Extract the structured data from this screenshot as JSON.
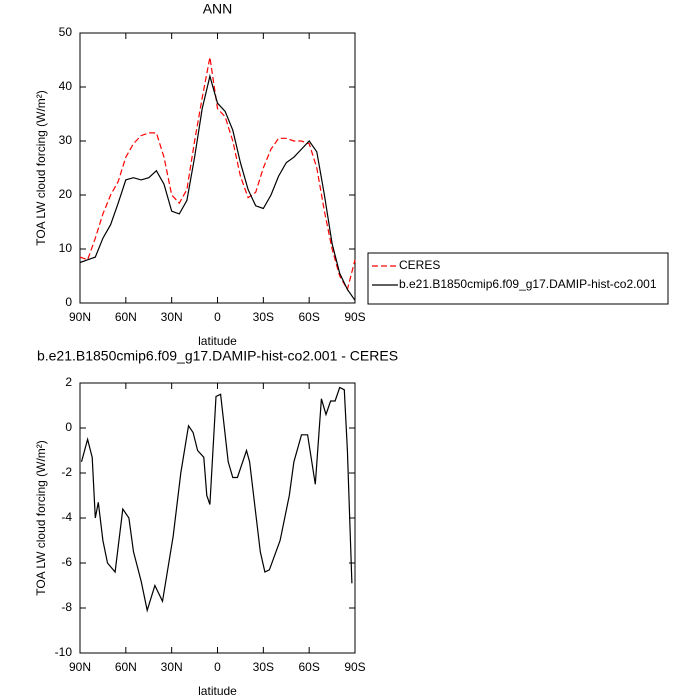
{
  "chart_data": [
    {
      "type": "line",
      "title": "ANN",
      "x_label": "latitude",
      "y_label": "TOA LW cloud forcing (W/m²)",
      "x": [
        90,
        85,
        80,
        75,
        70,
        65,
        60,
        55,
        50,
        45,
        40,
        35,
        30,
        25,
        20,
        15,
        10,
        5,
        0,
        -5,
        -10,
        -15,
        -20,
        -25,
        -30,
        -35,
        -40,
        -45,
        -50,
        -55,
        -60,
        -65,
        -70,
        -75,
        -80,
        -85,
        -90
      ],
      "series": [
        {
          "name": "CERES",
          "color": "#ff0000",
          "style": "dashed",
          "values": [
            8.5,
            8,
            12,
            16.5,
            20,
            22.5,
            27,
            29.5,
            31,
            31.5,
            31.5,
            27,
            20,
            18.5,
            21,
            30,
            38,
            45.5,
            36,
            34.5,
            30,
            23.5,
            19.5,
            20.5,
            25,
            28.5,
            30.5,
            30.5,
            30,
            30,
            29.5,
            25,
            17,
            10,
            5,
            2.5,
            8
          ]
        },
        {
          "name": "b.e21.B1850cmip6.f09_g17.DAMIP-hist-co2.001",
          "color": "#000000",
          "style": "solid",
          "values": [
            7.5,
            8,
            8.5,
            12,
            14.5,
            18.5,
            22.8,
            23.2,
            22.8,
            23.2,
            24.5,
            22,
            17,
            16.5,
            19,
            27,
            36,
            42,
            37,
            35.5,
            32,
            26,
            21,
            18,
            17.5,
            20,
            23.5,
            26,
            27,
            28.5,
            30,
            28,
            20,
            11,
            5.5,
            2.5,
            0.5
          ]
        }
      ],
      "xlim": [
        90,
        -90
      ],
      "ylim": [
        0,
        50
      ],
      "xticks": [
        {
          "value": 90,
          "label": "90N"
        },
        {
          "value": 60,
          "label": "60N"
        },
        {
          "value": 30,
          "label": "30N"
        },
        0,
        {
          "value": -30,
          "label": "30S"
        },
        {
          "value": -60,
          "label": "60S"
        },
        {
          "value": -90,
          "label": "90S"
        }
      ],
      "yticks": [
        0,
        10,
        20,
        30,
        40,
        50
      ],
      "legend": "right"
    },
    {
      "type": "line",
      "title": "b.e21.B1850cmip6.f09_g17.DAMIP-hist-co2.001 - CERES",
      "x_label": "latitude",
      "y_label": "TOA LW cloud forcing (W/m²)",
      "x": [
        89,
        85,
        82,
        80,
        78,
        75,
        72,
        67,
        62,
        58,
        55,
        50,
        46,
        41,
        36,
        29,
        24,
        19,
        16,
        13,
        9,
        7,
        5,
        1,
        -2,
        -7,
        -10,
        -13,
        -19,
        -21,
        -28,
        -31,
        -34,
        -41,
        -47,
        -50,
        -55,
        -59,
        -64,
        -68,
        -71,
        -74,
        -77,
        -80,
        -83,
        -85,
        -88
      ],
      "values": [
        -1.5,
        -0.5,
        -1.3,
        -4,
        -3.3,
        -5,
        -6,
        -6.4,
        -3.6,
        -4,
        -5.5,
        -6.8,
        -8.1,
        -7,
        -7.7,
        -4.8,
        -2,
        0.1,
        -0.2,
        -1,
        -1.3,
        -3,
        -3.4,
        1.4,
        1.5,
        -1.5,
        -2.2,
        -2.2,
        -1,
        -1.5,
        -5.5,
        -6.4,
        -6.3,
        -5,
        -3,
        -1.5,
        -0.3,
        -0.3,
        -2.5,
        1.3,
        0.6,
        1.2,
        1.2,
        1.8,
        1.7,
        -1,
        -6.9
      ],
      "color": "#000000",
      "xlim": [
        90,
        -90
      ],
      "ylim": [
        -10,
        2
      ],
      "xticks": [
        {
          "value": 90,
          "label": "90N"
        },
        {
          "value": 60,
          "label": "60N"
        },
        {
          "value": 30,
          "label": "30N"
        },
        0,
        {
          "value": -30,
          "label": "30S"
        },
        {
          "value": -60,
          "label": "60S"
        },
        {
          "value": -90,
          "label": "90S"
        }
      ],
      "yticks": [
        -10,
        -8,
        -6,
        -4,
        -2,
        0,
        2
      ]
    }
  ]
}
